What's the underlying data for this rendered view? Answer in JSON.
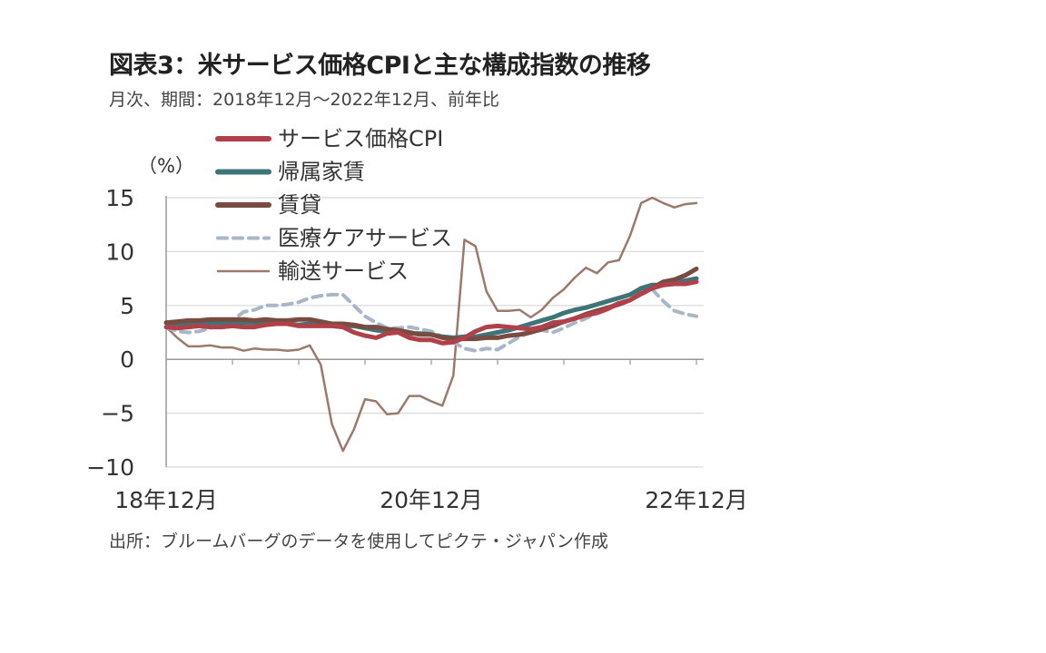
{
  "header": {
    "title": "図表3：米サービス価格CPIと主な構成指数の推移",
    "subtitle": "月次、期間：2018年12月～2022年12月、前年比"
  },
  "footer": {
    "source": "出所：ブルームバーグのデータを使用してピクテ・ジャパン作成"
  },
  "chart_data": {
    "type": "line",
    "title": "図表3：米サービス価格CPIと主な構成指数の推移",
    "subtitle": "月次、期間：2018年12月～2022年12月、前年比",
    "ylabel": "（%）",
    "ylim": [
      -10,
      15
    ],
    "yticks": [
      15,
      10,
      5,
      0,
      -5,
      -10
    ],
    "ytick_labels": [
      "15",
      "10",
      "5",
      "0",
      "−5",
      "−10"
    ],
    "xtick_labels": [
      {
        "index": 0,
        "label": "18年12月"
      },
      {
        "index": 24,
        "label": "20年12月"
      },
      {
        "index": 48,
        "label": "22年12月"
      }
    ],
    "x_start": "2018-12",
    "x_end": "2022-12",
    "legend_position": "top-left",
    "series": [
      {
        "name": "サービス価格CPI",
        "color": "#b0414a",
        "style": "solid-thick",
        "values": [
          3.0,
          2.9,
          3.0,
          3.1,
          3.0,
          3.0,
          3.1,
          3.0,
          3.0,
          3.2,
          3.3,
          3.3,
          3.1,
          3.1,
          3.1,
          3.1,
          3.0,
          2.5,
          2.2,
          2.0,
          2.4,
          2.5,
          2.0,
          1.8,
          1.8,
          1.5,
          1.6,
          2.0,
          2.6,
          3.0,
          3.1,
          3.0,
          2.9,
          2.8,
          3.0,
          3.4,
          3.5,
          3.8,
          4.1,
          4.3,
          4.7,
          5.2,
          5.5,
          6.1,
          6.6,
          6.9,
          7.0,
          7.0,
          7.2
        ]
      },
      {
        "name": "帰属家賃",
        "color": "#3e7378",
        "style": "solid-thick",
        "values": [
          3.4,
          3.3,
          3.3,
          3.4,
          3.4,
          3.4,
          3.4,
          3.4,
          3.4,
          3.4,
          3.3,
          3.3,
          3.2,
          3.3,
          3.2,
          3.1,
          3.1,
          3.1,
          2.9,
          2.7,
          2.6,
          2.6,
          2.4,
          2.4,
          2.3,
          2.1,
          2.0,
          2.1,
          2.1,
          2.3,
          2.5,
          2.7,
          3.0,
          3.3,
          3.6,
          3.9,
          4.3,
          4.6,
          4.8,
          5.1,
          5.4,
          5.7,
          6.0,
          6.6,
          6.9,
          6.9,
          7.1,
          7.3,
          7.5
        ]
      },
      {
        "name": "賃貸",
        "color": "#7a4b41",
        "style": "solid-thick",
        "values": [
          3.4,
          3.5,
          3.6,
          3.6,
          3.7,
          3.7,
          3.7,
          3.7,
          3.6,
          3.7,
          3.6,
          3.6,
          3.7,
          3.7,
          3.5,
          3.3,
          3.3,
          3.2,
          3.0,
          3.0,
          2.8,
          2.7,
          2.5,
          2.3,
          2.3,
          2.0,
          1.9,
          1.9,
          1.9,
          2.0,
          2.0,
          2.2,
          2.3,
          2.5,
          2.8,
          3.1,
          3.5,
          3.8,
          4.2,
          4.5,
          4.8,
          5.1,
          5.5,
          6.1,
          6.6,
          7.2,
          7.4,
          7.8,
          8.4
        ]
      },
      {
        "name": "医療ケアサービス",
        "color": "#a9b6c7",
        "style": "dashed",
        "values": [
          3.0,
          2.6,
          2.5,
          2.6,
          2.9,
          3.2,
          3.6,
          4.4,
          4.6,
          5.0,
          5.0,
          5.1,
          5.3,
          5.7,
          5.9,
          6.0,
          6.0,
          5.0,
          4.0,
          3.4,
          2.9,
          2.9,
          3.0,
          2.8,
          2.6,
          2.1,
          1.6,
          1.0,
          0.8,
          1.0,
          0.9,
          1.5,
          2.1,
          2.5,
          2.7,
          2.5,
          2.9,
          3.4,
          3.8,
          4.3,
          4.8,
          5.3,
          5.5,
          6.0,
          6.5,
          5.4,
          4.5,
          4.2,
          4.0
        ]
      },
      {
        "name": "輸送サービス",
        "color": "#9b7a6c",
        "style": "solid-thin",
        "values": [
          3.0,
          2.0,
          1.2,
          1.2,
          1.3,
          1.1,
          1.1,
          0.8,
          1.0,
          0.9,
          0.9,
          0.8,
          0.9,
          1.3,
          -0.5,
          -6.0,
          -8.5,
          -6.5,
          -3.7,
          -3.9,
          -5.1,
          -5.0,
          -3.4,
          -3.4,
          -3.9,
          -4.3,
          -1.5,
          11.1,
          10.5,
          6.3,
          4.5,
          4.5,
          4.6,
          3.9,
          4.6,
          5.7,
          6.5,
          7.6,
          8.5,
          8.0,
          9.0,
          9.2,
          11.5,
          14.5,
          15.0,
          14.5,
          14.1,
          14.4,
          14.5
        ]
      }
    ]
  }
}
